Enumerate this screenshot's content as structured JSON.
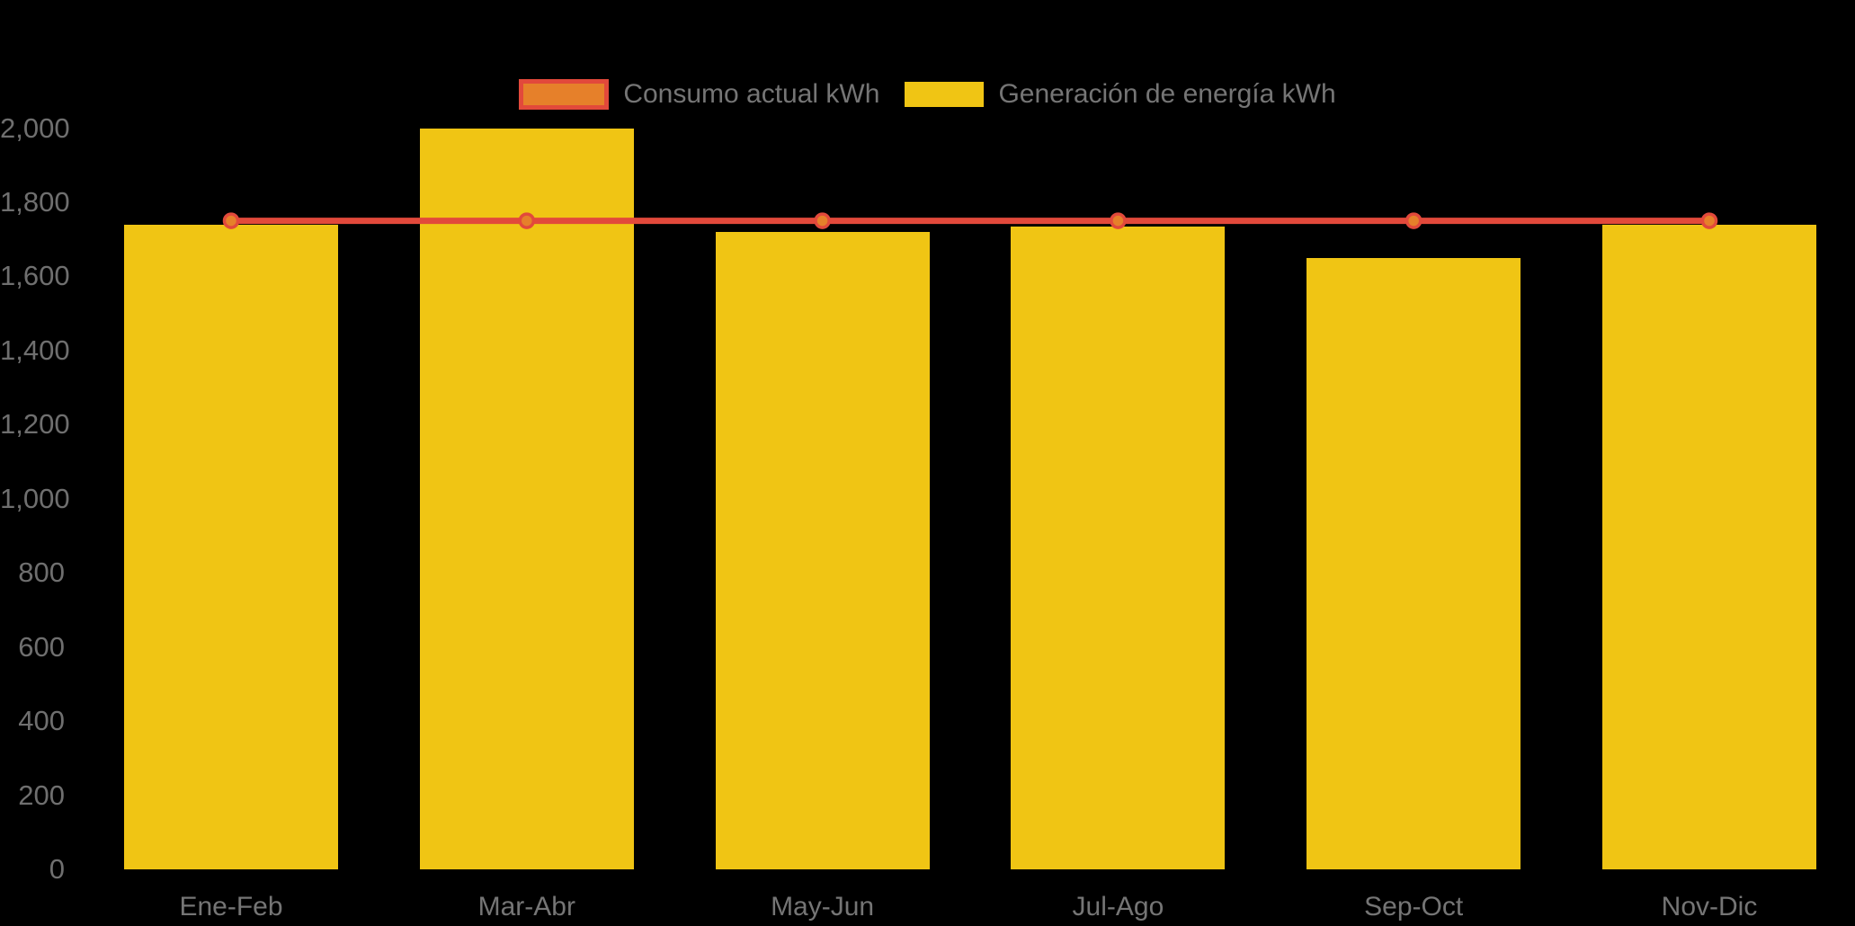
{
  "legend": {
    "consumo_label": "Consumo actual kWh",
    "generacion_label": "Generación de energía kWh"
  },
  "chart_data": {
    "type": "bar",
    "title": "",
    "xlabel": "",
    "ylabel": "",
    "categories": [
      "Ene-Feb",
      "Mar-Abr",
      "May-Jun",
      "Jul-Ago",
      "Sep-Oct",
      "Nov-Dic"
    ],
    "series": [
      {
        "name": "Consumo actual kWh",
        "type": "line",
        "color": "#E2493B",
        "marker_fill": "#E6802A",
        "values": [
          1750,
          1750,
          1750,
          1750,
          1750,
          1750
        ]
      },
      {
        "name": "Generación de energía kWh",
        "type": "bar",
        "color": "#F0C514",
        "values": [
          1740,
          2000,
          1720,
          1735,
          1650,
          1740
        ]
      }
    ],
    "ylim": [
      0,
      2000
    ],
    "y_ticks": [
      0,
      200,
      400,
      600,
      800,
      1000,
      1200,
      1400,
      1600,
      1800,
      2000
    ],
    "y_tick_labels": [
      "0",
      "200",
      "400",
      "600",
      "800",
      "1,000",
      "1,200",
      "1,400",
      "1,600",
      "1,800",
      "2,000"
    ],
    "grid": false,
    "legend_position": "top-center",
    "background_color": "#000000",
    "axis_text_color": "#6F6F6F"
  }
}
